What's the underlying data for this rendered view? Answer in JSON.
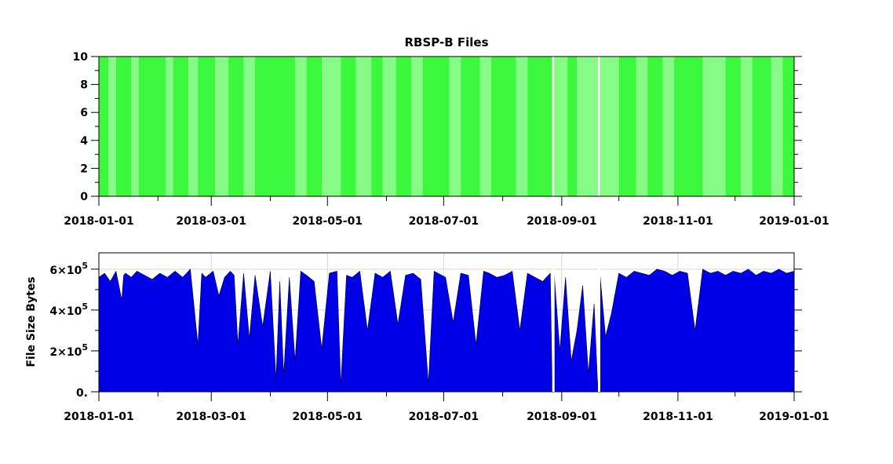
{
  "chart_data": [
    {
      "type": "heatmap",
      "title": "RBSP-B Files",
      "ylim": [
        0,
        10
      ],
      "ytick_labels": [
        "0",
        "2",
        "4",
        "6",
        "8",
        "10"
      ],
      "xtick_labels": [
        "2018-01-01",
        "2018-03-01",
        "2018-05-01",
        "2018-07-01",
        "2018-09-01",
        "2018-11-01",
        "2019-01-01"
      ],
      "xlim": [
        "2018-01-01",
        "2019-01-01"
      ],
      "colors": {
        "bright": "#3cf83c",
        "light": "#86fb86",
        "gap": "#ffffff"
      },
      "segments": [
        {
          "start": "2018-01-01",
          "end": "2018-01-06",
          "level": "bright"
        },
        {
          "start": "2018-01-06",
          "end": "2018-01-10",
          "level": "light"
        },
        {
          "start": "2018-01-10",
          "end": "2018-01-18",
          "level": "bright"
        },
        {
          "start": "2018-01-18",
          "end": "2018-01-22",
          "level": "light"
        },
        {
          "start": "2018-01-22",
          "end": "2018-02-05",
          "level": "bright"
        },
        {
          "start": "2018-02-05",
          "end": "2018-02-09",
          "level": "light"
        },
        {
          "start": "2018-02-09",
          "end": "2018-02-17",
          "level": "bright"
        },
        {
          "start": "2018-02-17",
          "end": "2018-02-22",
          "level": "light"
        },
        {
          "start": "2018-02-22",
          "end": "2018-03-03",
          "level": "bright"
        },
        {
          "start": "2018-03-03",
          "end": "2018-03-10",
          "level": "light"
        },
        {
          "start": "2018-03-10",
          "end": "2018-03-18",
          "level": "bright"
        },
        {
          "start": "2018-03-18",
          "end": "2018-03-24",
          "level": "light"
        },
        {
          "start": "2018-03-24",
          "end": "2018-04-14",
          "level": "bright"
        },
        {
          "start": "2018-04-14",
          "end": "2018-04-20",
          "level": "light"
        },
        {
          "start": "2018-04-20",
          "end": "2018-04-28",
          "level": "bright"
        },
        {
          "start": "2018-04-28",
          "end": "2018-05-08",
          "level": "light"
        },
        {
          "start": "2018-05-08",
          "end": "2018-05-16",
          "level": "bright"
        },
        {
          "start": "2018-05-16",
          "end": "2018-05-24",
          "level": "light"
        },
        {
          "start": "2018-05-24",
          "end": "2018-05-30",
          "level": "bright"
        },
        {
          "start": "2018-05-30",
          "end": "2018-06-06",
          "level": "light"
        },
        {
          "start": "2018-06-06",
          "end": "2018-06-14",
          "level": "bright"
        },
        {
          "start": "2018-06-14",
          "end": "2018-06-20",
          "level": "light"
        },
        {
          "start": "2018-06-20",
          "end": "2018-07-04",
          "level": "bright"
        },
        {
          "start": "2018-07-04",
          "end": "2018-07-10",
          "level": "light"
        },
        {
          "start": "2018-07-10",
          "end": "2018-07-20",
          "level": "bright"
        },
        {
          "start": "2018-07-20",
          "end": "2018-07-26",
          "level": "light"
        },
        {
          "start": "2018-07-26",
          "end": "2018-08-08",
          "level": "bright"
        },
        {
          "start": "2018-08-08",
          "end": "2018-08-14",
          "level": "light"
        },
        {
          "start": "2018-08-14",
          "end": "2018-08-27",
          "level": "bright"
        },
        {
          "start": "2018-08-27",
          "end": "2018-08-28",
          "level": "gap"
        },
        {
          "start": "2018-08-28",
          "end": "2018-09-04",
          "level": "light"
        },
        {
          "start": "2018-09-04",
          "end": "2018-09-09",
          "level": "bright"
        },
        {
          "start": "2018-09-09",
          "end": "2018-09-20",
          "level": "light"
        },
        {
          "start": "2018-09-20",
          "end": "2018-09-21",
          "level": "gap"
        },
        {
          "start": "2018-09-21",
          "end": "2018-10-01",
          "level": "light"
        },
        {
          "start": "2018-10-01",
          "end": "2018-10-10",
          "level": "bright"
        },
        {
          "start": "2018-10-10",
          "end": "2018-10-16",
          "level": "light"
        },
        {
          "start": "2018-10-16",
          "end": "2018-10-24",
          "level": "bright"
        },
        {
          "start": "2018-10-24",
          "end": "2018-10-30",
          "level": "light"
        },
        {
          "start": "2018-10-30",
          "end": "2018-11-14",
          "level": "bright"
        },
        {
          "start": "2018-11-14",
          "end": "2018-11-26",
          "level": "light"
        },
        {
          "start": "2018-11-26",
          "end": "2018-12-04",
          "level": "bright"
        },
        {
          "start": "2018-12-04",
          "end": "2018-12-10",
          "level": "light"
        },
        {
          "start": "2018-12-10",
          "end": "2018-12-20",
          "level": "bright"
        },
        {
          "start": "2018-12-20",
          "end": "2018-12-26",
          "level": "light"
        },
        {
          "start": "2018-12-26",
          "end": "2019-01-01",
          "level": "bright"
        }
      ]
    },
    {
      "type": "area",
      "ylabel": "File Size Bytes",
      "ylim": [
        0,
        680000
      ],
      "yticks": [
        {
          "value": 0,
          "mantissa": "0.",
          "exp": ""
        },
        {
          "value": 200000,
          "mantissa": "2×10",
          "exp": "5"
        },
        {
          "value": 400000,
          "mantissa": "4×10",
          "exp": "5"
        },
        {
          "value": 600000,
          "mantissa": "6×10",
          "exp": "5"
        }
      ],
      "xtick_labels": [
        "2018-01-01",
        "2018-03-01",
        "2018-05-01",
        "2018-07-01",
        "2018-09-01",
        "2018-11-01",
        "2019-01-01"
      ],
      "xlim": [
        "2018-01-01",
        "2019-01-01"
      ],
      "grid": true,
      "fill_color": "#0000e6",
      "x": [
        "2018-01-01",
        "2018-01-04",
        "2018-01-07",
        "2018-01-10",
        "2018-01-13",
        "2018-01-14",
        "2018-01-15",
        "2018-01-18",
        "2018-01-21",
        "2018-01-25",
        "2018-01-29",
        "2018-02-02",
        "2018-02-06",
        "2018-02-10",
        "2018-02-14",
        "2018-02-18",
        "2018-02-22",
        "2018-02-24",
        "2018-02-26",
        "2018-03-02",
        "2018-03-05",
        "2018-03-08",
        "2018-03-11",
        "2018-03-13",
        "2018-03-15",
        "2018-03-18",
        "2018-03-21",
        "2018-03-24",
        "2018-03-28",
        "2018-04-01",
        "2018-04-04",
        "2018-04-06",
        "2018-04-08",
        "2018-04-11",
        "2018-04-14",
        "2018-04-17",
        "2018-04-20",
        "2018-04-24",
        "2018-04-28",
        "2018-05-02",
        "2018-05-06",
        "2018-05-08",
        "2018-05-11",
        "2018-05-14",
        "2018-05-18",
        "2018-05-22",
        "2018-05-26",
        "2018-05-30",
        "2018-06-03",
        "2018-06-07",
        "2018-06-11",
        "2018-06-15",
        "2018-06-19",
        "2018-06-23",
        "2018-06-26",
        "2018-06-28",
        "2018-07-02",
        "2018-07-06",
        "2018-07-10",
        "2018-07-14",
        "2018-07-18",
        "2018-07-22",
        "2018-07-25",
        "2018-07-29",
        "2018-08-02",
        "2018-08-06",
        "2018-08-10",
        "2018-08-14",
        "2018-08-18",
        "2018-08-22",
        "2018-08-26",
        "2018-08-27",
        "2018-08-28",
        "2018-08-31",
        "2018-09-03",
        "2018-09-06",
        "2018-09-09",
        "2018-09-12",
        "2018-09-15",
        "2018-09-18",
        "2018-09-20",
        "2018-09-21",
        "2018-09-24",
        "2018-09-27",
        "2018-10-01",
        "2018-10-05",
        "2018-10-09",
        "2018-10-13",
        "2018-10-17",
        "2018-10-21",
        "2018-10-25",
        "2018-10-29",
        "2018-11-02",
        "2018-11-06",
        "2018-11-10",
        "2018-11-14",
        "2018-11-18",
        "2018-11-22",
        "2018-11-26",
        "2018-11-30",
        "2018-12-04",
        "2018-12-08",
        "2018-12-12",
        "2018-12-16",
        "2018-12-20",
        "2018-12-24",
        "2018-12-28",
        "2019-01-01"
      ],
      "values": [
        560000,
        580000,
        540000,
        590000,
        450000,
        570000,
        580000,
        560000,
        590000,
        570000,
        550000,
        580000,
        560000,
        590000,
        560000,
        600000,
        230000,
        580000,
        560000,
        590000,
        470000,
        560000,
        590000,
        570000,
        230000,
        580000,
        260000,
        570000,
        320000,
        590000,
        60000,
        540000,
        80000,
        560000,
        150000,
        590000,
        570000,
        540000,
        210000,
        580000,
        590000,
        30000,
        570000,
        560000,
        590000,
        300000,
        580000,
        560000,
        590000,
        330000,
        570000,
        580000,
        550000,
        40000,
        590000,
        580000,
        560000,
        340000,
        580000,
        570000,
        230000,
        590000,
        580000,
        560000,
        570000,
        590000,
        300000,
        580000,
        560000,
        540000,
        580000,
        0,
        580000,
        200000,
        560000,
        150000,
        300000,
        520000,
        90000,
        430000,
        0,
        580000,
        270000,
        380000,
        580000,
        560000,
        590000,
        580000,
        570000,
        600000,
        590000,
        570000,
        590000,
        580000,
        300000,
        600000,
        580000,
        590000,
        570000,
        590000,
        580000,
        600000,
        570000,
        590000,
        580000,
        600000,
        580000,
        590000
      ]
    }
  ]
}
